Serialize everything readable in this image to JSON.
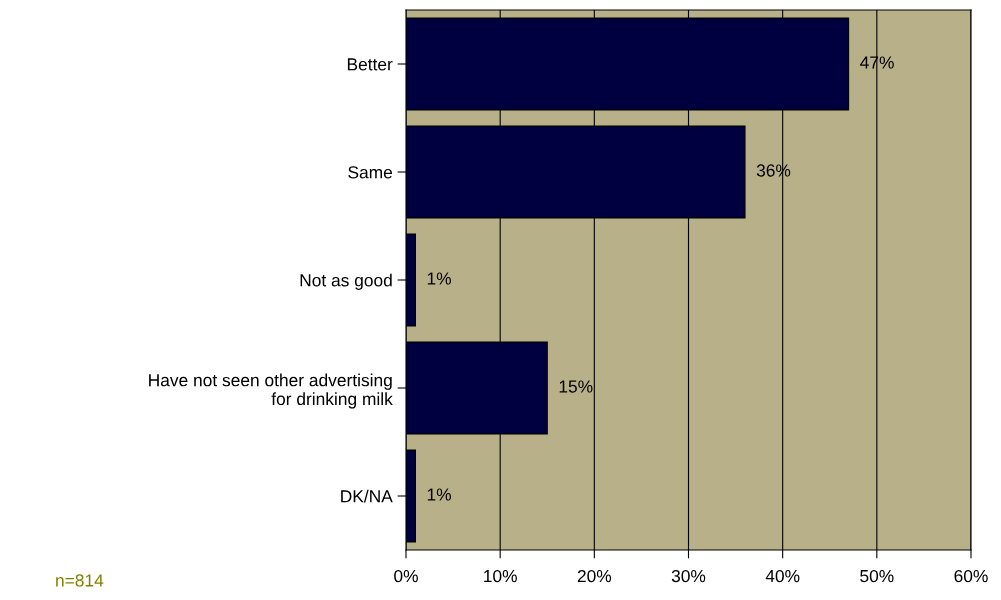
{
  "chart_data": {
    "type": "bar",
    "orientation": "horizontal",
    "categories": [
      "Better",
      "Same",
      "Not as good",
      "Have not seen other advertising\nfor drinking milk",
      "DK/NA"
    ],
    "values": [
      47,
      36,
      1,
      15,
      1
    ],
    "value_labels": [
      "47%",
      "36%",
      "1%",
      "15%",
      "1%"
    ],
    "color": "#000040",
    "xlim": [
      0,
      60
    ],
    "xticks": [
      {
        "value": 0,
        "label": "0%"
      },
      {
        "value": 10,
        "label": "10%"
      },
      {
        "value": 20,
        "label": "20%"
      },
      {
        "value": 30,
        "label": "30%"
      },
      {
        "value": 40,
        "label": "40%"
      },
      {
        "value": 50,
        "label": "50%"
      },
      {
        "value": 60,
        "label": "60%"
      }
    ],
    "grid": "x",
    "legend": false,
    "annotations": [
      "n=814"
    ]
  }
}
